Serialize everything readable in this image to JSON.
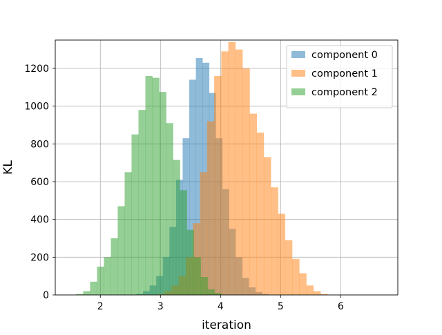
{
  "chart_data": {
    "type": "histogram",
    "xlabel": "iteration",
    "ylabel": "KL",
    "xlim": [
      1.25,
      6.95
    ],
    "ylim": [
      0,
      1350
    ],
    "xticks": [
      2,
      3,
      4,
      5,
      6
    ],
    "yticks": [
      0,
      200,
      400,
      600,
      800,
      1000,
      1200
    ],
    "grid": true,
    "legend_position": "top-right",
    "bar_alpha": 0.5,
    "series": [
      {
        "name": "component 0",
        "color": "#1f77b4",
        "bin_start": 2.6,
        "bin_width": 0.11,
        "counts": [
          5,
          20,
          50,
          100,
          200,
          360,
          610,
          830,
          1140,
          1255,
          1230,
          1070,
          830,
          560,
          350,
          200,
          90,
          40,
          15,
          5
        ]
      },
      {
        "name": "component 1",
        "color": "#ff7f0e",
        "bin_start": 2.95,
        "bin_width": 0.118,
        "counts": [
          5,
          20,
          50,
          100,
          200,
          380,
          650,
          920,
          1160,
          1290,
          1340,
          1300,
          1200,
          960,
          860,
          730,
          570,
          430,
          290,
          190,
          115,
          50,
          20,
          5
        ]
      },
      {
        "name": "component 2",
        "color": "#2ca02c",
        "bin_start": 1.6,
        "bin_width": 0.115,
        "counts": [
          5,
          20,
          70,
          150,
          200,
          300,
          470,
          650,
          850,
          980,
          1160,
          1150,
          1075,
          910,
          715,
          555,
          345,
          200,
          95,
          30,
          10
        ]
      }
    ]
  }
}
